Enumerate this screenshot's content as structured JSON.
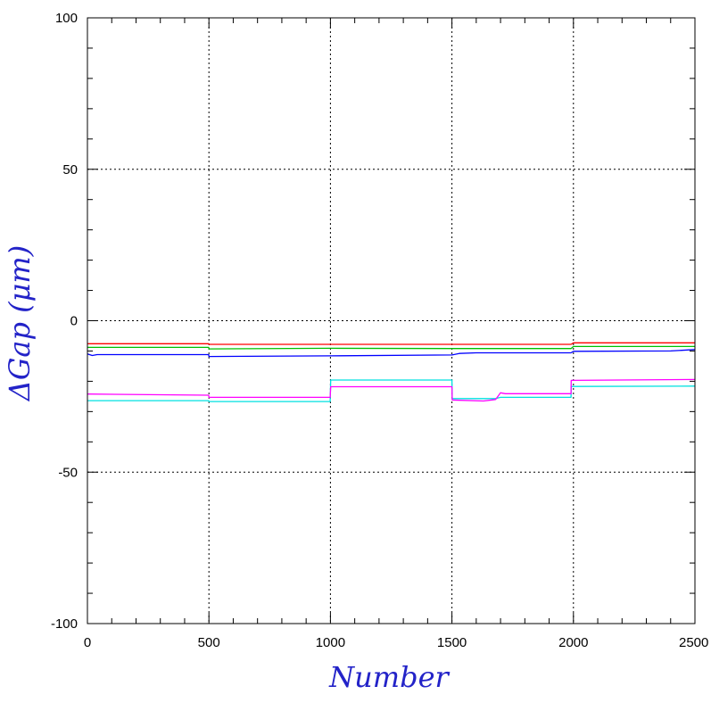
{
  "chart_data": {
    "type": "line",
    "xlabel": "Number",
    "ylabel": "ΔGap (μm)",
    "xlim": [
      0,
      2500
    ],
    "ylim": [
      -100,
      100
    ],
    "xticks": [
      0,
      500,
      1000,
      1500,
      2000,
      2500
    ],
    "yticks": [
      -100,
      -50,
      0,
      50,
      100
    ],
    "xtick_labels": [
      "0",
      "500",
      "1000",
      "1500",
      "2000",
      "2500"
    ],
    "ytick_labels": [
      "-100",
      "-50",
      "0",
      "50",
      "100"
    ],
    "grid": true,
    "series": [
      {
        "color": "#ff0000",
        "x": [
          0,
          499,
          500,
          1000,
          1500,
          1990,
          2000,
          2500
        ],
        "y": [
          -7.6,
          -7.6,
          -7.8,
          -7.8,
          -7.8,
          -7.8,
          -7.3,
          -7.3
        ]
      },
      {
        "color": "#00c000",
        "x": [
          0,
          499,
          500,
          1000,
          1500,
          1990,
          2000,
          2500
        ],
        "y": [
          -8.8,
          -8.8,
          -9.3,
          -9.1,
          -9.2,
          -9.2,
          -8.5,
          -8.5
        ]
      },
      {
        "color": "#0000ff",
        "x": [
          0,
          20,
          40,
          499,
          500,
          1000,
          1500,
          1530,
          1600,
          1990,
          2000,
          2400,
          2500
        ],
        "y": [
          -11.0,
          -11.5,
          -11.2,
          -11.2,
          -11.8,
          -11.6,
          -11.3,
          -10.8,
          -10.6,
          -10.6,
          -10.1,
          -10.0,
          -9.5
        ]
      },
      {
        "color": "#00e0e0",
        "x": [
          0,
          499,
          500,
          999,
          1001,
          1500,
          1501,
          1680,
          1700,
          1990,
          1991,
          2500
        ],
        "y": [
          -26.4,
          -26.4,
          -26.7,
          -26.7,
          -19.6,
          -19.6,
          -25.7,
          -25.7,
          -25.3,
          -25.3,
          -21.7,
          -21.6
        ]
      },
      {
        "color": "#ff00ff",
        "x": [
          0,
          499,
          500,
          999,
          1001,
          1500,
          1501,
          1630,
          1680,
          1700,
          1720,
          1990,
          1991,
          2500
        ],
        "y": [
          -24.2,
          -24.6,
          -25.3,
          -25.3,
          -21.8,
          -21.8,
          -26.2,
          -26.5,
          -26.0,
          -23.8,
          -24.1,
          -24.1,
          -19.7,
          -19.4
        ]
      }
    ]
  }
}
